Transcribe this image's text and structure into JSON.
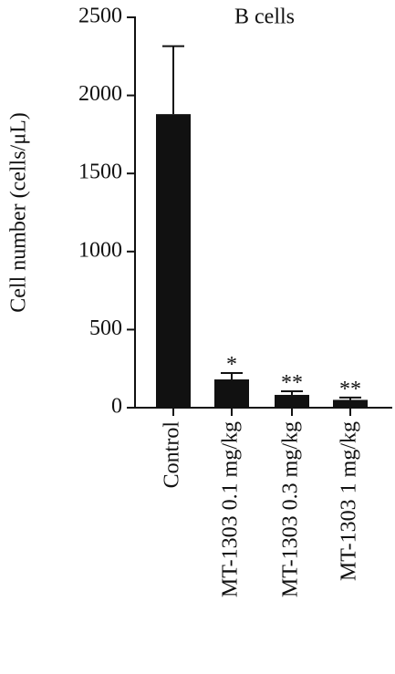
{
  "chart_data": {
    "type": "bar",
    "title": "B cells",
    "ylabel": "Cell number (cells/μL)",
    "categories": [
      "Control",
      "MT-1303 0.1 mg/kg",
      "MT-1303 0.3 mg/kg",
      "MT-1303 1 mg/kg"
    ],
    "values": [
      1880,
      181,
      82,
      50
    ],
    "errors": [
      435,
      41,
      23,
      15
    ],
    "annotations": [
      null,
      "*",
      "**",
      "**"
    ],
    "color": "#111111",
    "ylim": [
      0,
      2500
    ],
    "yticks": [
      0,
      500,
      1000,
      1500,
      2000,
      2500
    ],
    "grid": false
  }
}
